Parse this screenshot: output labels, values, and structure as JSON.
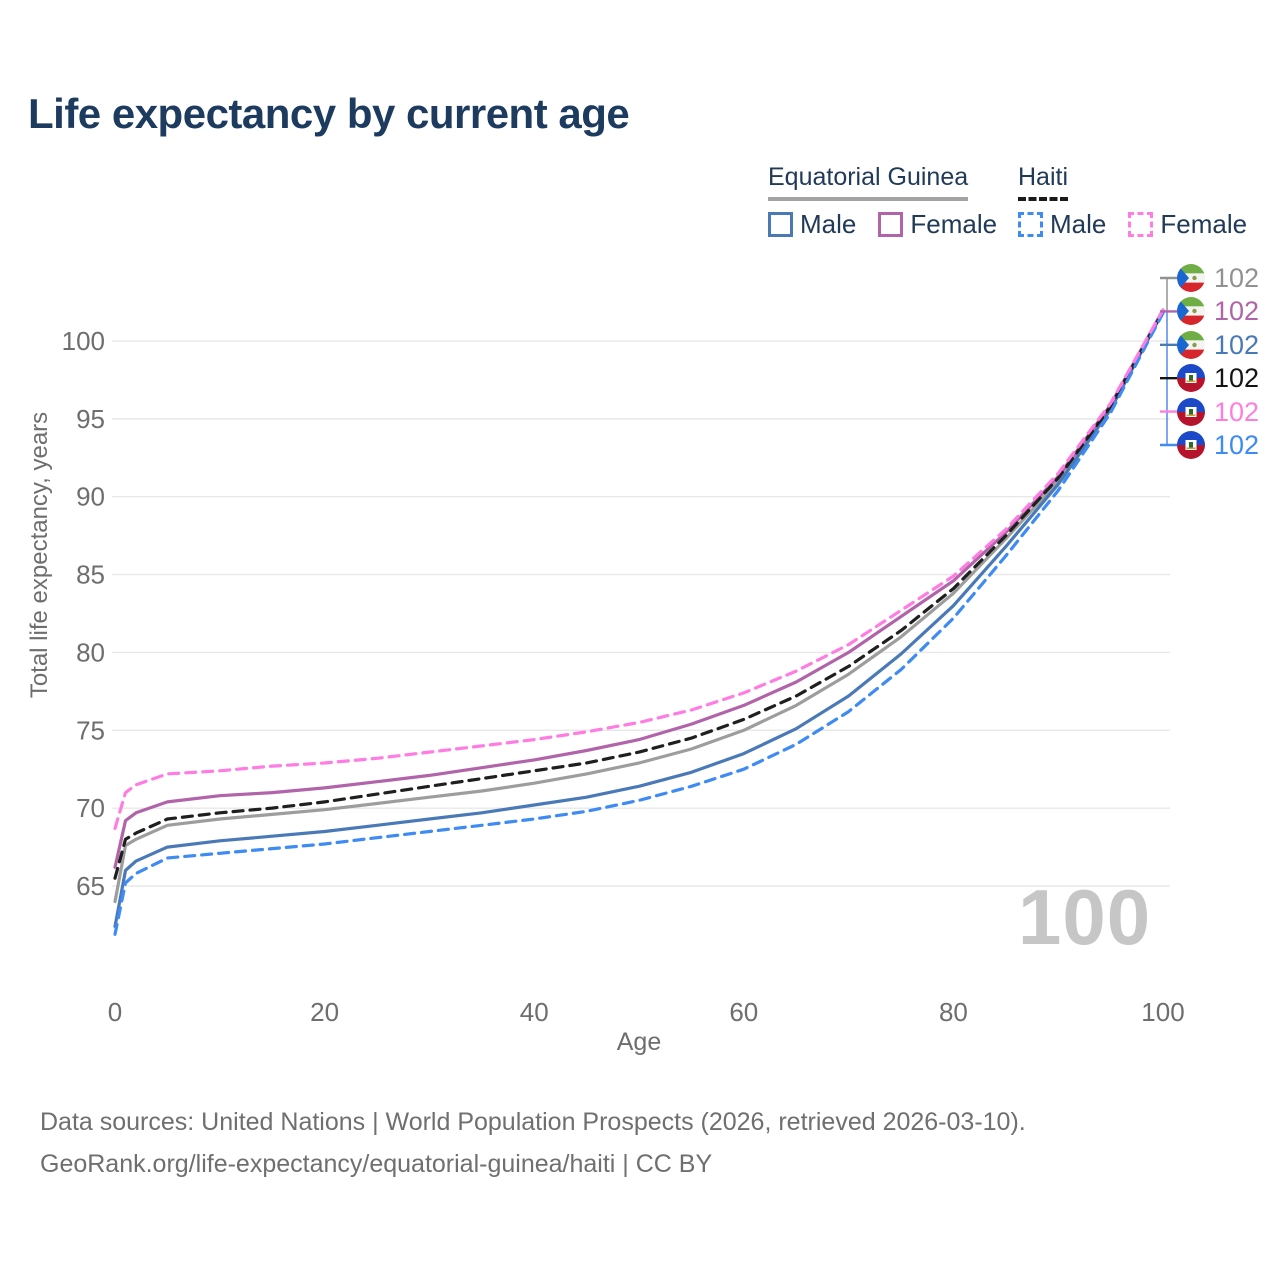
{
  "header": {
    "title": "Life expectancy by current age"
  },
  "legend": {
    "groups": [
      {
        "name": "Equatorial Guinea",
        "line_style": "solid",
        "underline_color": "#a3a3a3",
        "items": [
          {
            "label": "Male",
            "color": "#4a79b8"
          },
          {
            "label": "Female",
            "color": "#b164a9"
          }
        ]
      },
      {
        "name": "Haiti",
        "line_style": "dashed",
        "underline_color": "#1a1a1a",
        "items": [
          {
            "label": "Male",
            "color": "#3e8bf4"
          },
          {
            "label": "Female",
            "color": "#ff7de2"
          }
        ]
      }
    ]
  },
  "chart_data": {
    "type": "line",
    "title": "Life expectancy by current age",
    "xlabel": "Age",
    "ylabel": "Total life expectancy, years",
    "xlim": [
      0,
      100
    ],
    "ylim": [
      61,
      103
    ],
    "xticks": [
      0,
      20,
      40,
      60,
      80,
      100
    ],
    "yticks": [
      65,
      70,
      75,
      80,
      85,
      90,
      95,
      100
    ],
    "grid": "horizontal-only",
    "legend_position": "top-right",
    "watermark": "100",
    "x": [
      0,
      1,
      2,
      5,
      10,
      15,
      20,
      25,
      30,
      35,
      40,
      45,
      50,
      55,
      60,
      65,
      70,
      75,
      80,
      85,
      90,
      95,
      100
    ],
    "series": [
      {
        "name": "Equatorial Guinea — Both sexes",
        "color": "#9d9d9d",
        "dash": "solid",
        "values": [
          64.0,
          67.6,
          68.0,
          68.9,
          69.3,
          69.6,
          69.9,
          70.3,
          70.7,
          71.1,
          71.6,
          72.2,
          72.9,
          73.8,
          75.0,
          76.6,
          78.6,
          81.0,
          83.8,
          87.3,
          91.0,
          95.7,
          101.9
        ]
      },
      {
        "name": "Equatorial Guinea — Male",
        "color": "#4a79b8",
        "dash": "solid",
        "values": [
          62.4,
          66.0,
          66.6,
          67.5,
          67.9,
          68.2,
          68.5,
          68.9,
          69.3,
          69.7,
          70.2,
          70.7,
          71.4,
          72.3,
          73.5,
          75.1,
          77.2,
          79.9,
          83.0,
          86.8,
          90.8,
          95.6,
          101.9
        ]
      },
      {
        "name": "Equatorial Guinea — Female",
        "color": "#b164a9",
        "dash": "solid",
        "values": [
          66.2,
          69.2,
          69.7,
          70.4,
          70.8,
          71.0,
          71.3,
          71.7,
          72.1,
          72.6,
          73.1,
          73.7,
          74.4,
          75.4,
          76.6,
          78.1,
          80.0,
          82.3,
          84.6,
          87.7,
          91.3,
          95.9,
          102.0
        ]
      },
      {
        "name": "Haiti — Both sexes",
        "color": "#1f1f1f",
        "dash": "dashed",
        "values": [
          65.5,
          68.0,
          68.4,
          69.3,
          69.7,
          70.0,
          70.4,
          70.9,
          71.4,
          71.9,
          72.4,
          72.9,
          73.6,
          74.5,
          75.7,
          77.2,
          79.1,
          81.4,
          84.1,
          87.5,
          91.2,
          95.8,
          101.9
        ]
      },
      {
        "name": "Haiti — Male",
        "color": "#3e8bf4",
        "dash": "dashed",
        "values": [
          61.9,
          65.2,
          65.8,
          66.8,
          67.1,
          67.4,
          67.7,
          68.1,
          68.5,
          68.9,
          69.3,
          69.8,
          70.5,
          71.4,
          72.5,
          74.1,
          76.2,
          78.9,
          82.2,
          86.2,
          90.4,
          95.4,
          101.8
        ]
      },
      {
        "name": "Haiti — Female",
        "color": "#ff7de2",
        "dash": "dashed",
        "values": [
          68.7,
          71.0,
          71.5,
          72.2,
          72.4,
          72.7,
          72.9,
          73.2,
          73.6,
          74.0,
          74.4,
          74.9,
          75.5,
          76.3,
          77.4,
          78.8,
          80.5,
          82.7,
          84.9,
          87.9,
          91.5,
          96.0,
          102.0
        ]
      }
    ]
  },
  "end_labels": [
    {
      "flag": "equatorial-guinea",
      "series": "Equatorial Guinea — Both sexes",
      "value": "102",
      "color": "#919191"
    },
    {
      "flag": "equatorial-guinea",
      "series": "Equatorial Guinea — Female",
      "value": "102",
      "color": "#b164a9"
    },
    {
      "flag": "equatorial-guinea",
      "series": "Equatorial Guinea — Male",
      "value": "102",
      "color": "#4a79b8"
    },
    {
      "flag": "haiti",
      "series": "Haiti — Both sexes",
      "value": "102",
      "color": "#141414"
    },
    {
      "flag": "haiti",
      "series": "Haiti — Female",
      "value": "102",
      "color": "#ff7de2"
    },
    {
      "flag": "haiti",
      "series": "Haiti — Male",
      "value": "102",
      "color": "#3e8bf4"
    }
  ],
  "footer": {
    "line1": "Data sources: United Nations | World Population Prospects (2026, retrieved 2026-03-10).",
    "line2": "GeoRank.org/life-expectancy/equatorial-guinea/haiti | CC BY"
  },
  "colors": {
    "grid": "#e8e8e8",
    "tick_text": "#6e6e6e",
    "title_text": "#1d3a5f",
    "watermark": "#c6c6c6"
  }
}
